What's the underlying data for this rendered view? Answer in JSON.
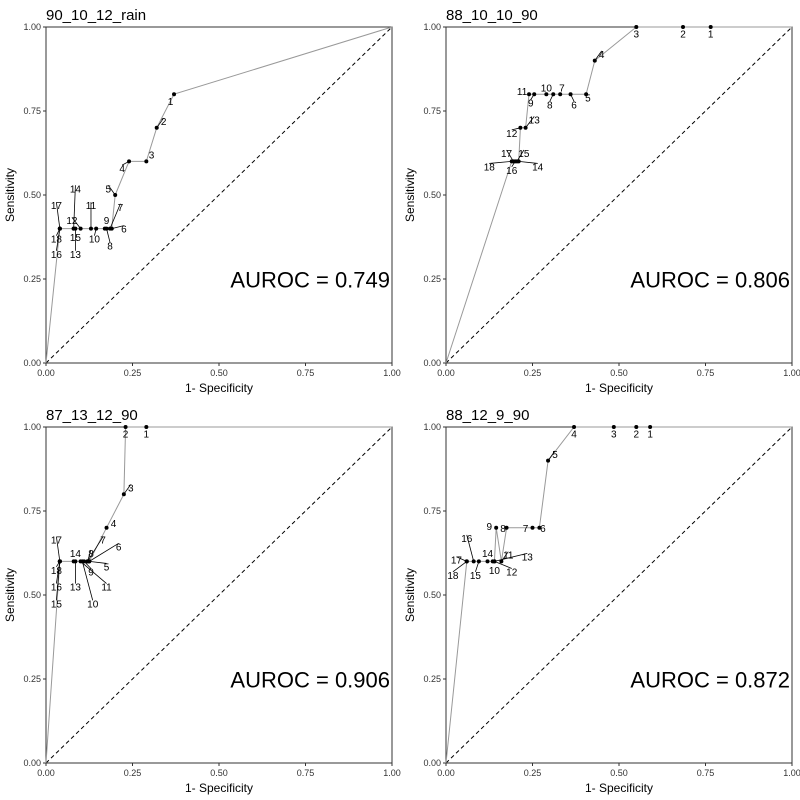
{
  "figure": {
    "background": "#ffffff",
    "line_color": "#999999",
    "point_color": "#000000"
  },
  "chart_data": [
    {
      "type": "line",
      "title": "90_10_12_rain",
      "xlabel": "1- Specificity",
      "ylabel": "Sensitivity",
      "xlim": [
        0,
        1
      ],
      "ylim": [
        0,
        1
      ],
      "ticks": [
        "0.00",
        "0.25",
        "0.50",
        "0.75",
        "1.00"
      ],
      "annotation": "AUROC = 0.749",
      "grid": false,
      "diagonal": "dashed",
      "points": [
        {
          "label": "1",
          "x": 0.37,
          "y": 0.8,
          "lx": 0.36,
          "ly": 0.78
        },
        {
          "label": "2",
          "x": 0.32,
          "y": 0.7,
          "lx": 0.34,
          "ly": 0.72
        },
        {
          "label": "3",
          "x": 0.29,
          "y": 0.6,
          "lx": 0.305,
          "ly": 0.62
        },
        {
          "label": "4",
          "x": 0.24,
          "y": 0.6,
          "lx": 0.22,
          "ly": 0.58
        },
        {
          "label": "5",
          "x": 0.2,
          "y": 0.5,
          "lx": 0.18,
          "ly": 0.52
        },
        {
          "label": "6",
          "x": 0.19,
          "y": 0.4,
          "lx": 0.225,
          "ly": 0.4
        },
        {
          "label": "7",
          "x": 0.185,
          "y": 0.4,
          "lx": 0.215,
          "ly": 0.465
        },
        {
          "label": "8",
          "x": 0.175,
          "y": 0.4,
          "lx": 0.185,
          "ly": 0.35
        },
        {
          "label": "9",
          "x": 0.17,
          "y": 0.4,
          "lx": 0.175,
          "ly": 0.425
        },
        {
          "label": "10",
          "x": 0.145,
          "y": 0.4,
          "lx": 0.14,
          "ly": 0.37
        },
        {
          "label": "11",
          "x": 0.13,
          "y": 0.4,
          "lx": 0.13,
          "ly": 0.47
        },
        {
          "label": "12",
          "x": 0.1,
          "y": 0.4,
          "lx": 0.075,
          "ly": 0.425
        },
        {
          "label": "13",
          "x": 0.085,
          "y": 0.4,
          "lx": 0.085,
          "ly": 0.325
        },
        {
          "label": "14",
          "x": 0.08,
          "y": 0.4,
          "lx": 0.085,
          "ly": 0.52
        },
        {
          "label": "15",
          "x": 0.08,
          "y": 0.4,
          "lx": 0.085,
          "ly": 0.375
        },
        {
          "label": "16",
          "x": 0.04,
          "y": 0.4,
          "lx": 0.03,
          "ly": 0.325
        },
        {
          "label": "17",
          "x": 0.04,
          "y": 0.4,
          "lx": 0.03,
          "ly": 0.47
        },
        {
          "label": "18",
          "x": 0.04,
          "y": 0.4,
          "lx": 0.03,
          "ly": 0.37
        }
      ]
    },
    {
      "type": "line",
      "title": "88_10_10_90",
      "xlabel": "1- Specificity",
      "ylabel": "Sensitivity",
      "xlim": [
        0,
        1
      ],
      "ylim": [
        0,
        1
      ],
      "ticks": [
        "0.00",
        "0.25",
        "0.50",
        "0.75",
        "1.00"
      ],
      "annotation": "AUROC = 0.806",
      "grid": false,
      "diagonal": "dashed",
      "points": [
        {
          "label": "1",
          "x": 0.765,
          "y": 1.0,
          "lx": 0.765,
          "ly": 0.98
        },
        {
          "label": "2",
          "x": 0.685,
          "y": 1.0,
          "lx": 0.685,
          "ly": 0.98
        },
        {
          "label": "3",
          "x": 0.55,
          "y": 1.0,
          "lx": 0.55,
          "ly": 0.98
        },
        {
          "label": "4",
          "x": 0.43,
          "y": 0.9,
          "lx": 0.45,
          "ly": 0.92
        },
        {
          "label": "5",
          "x": 0.405,
          "y": 0.8,
          "lx": 0.41,
          "ly": 0.79
        },
        {
          "label": "6",
          "x": 0.36,
          "y": 0.8,
          "lx": 0.37,
          "ly": 0.77
        },
        {
          "label": "7",
          "x": 0.33,
          "y": 0.8,
          "lx": 0.335,
          "ly": 0.82
        },
        {
          "label": "8",
          "x": 0.31,
          "y": 0.8,
          "lx": 0.3,
          "ly": 0.77
        },
        {
          "label": "9",
          "x": 0.255,
          "y": 0.8,
          "lx": 0.245,
          "ly": 0.775
        },
        {
          "label": "10",
          "x": 0.29,
          "y": 0.8,
          "lx": 0.29,
          "ly": 0.82
        },
        {
          "label": "11",
          "x": 0.24,
          "y": 0.8,
          "lx": 0.22,
          "ly": 0.81
        },
        {
          "label": "12",
          "x": 0.215,
          "y": 0.7,
          "lx": 0.19,
          "ly": 0.685
        },
        {
          "label": "13",
          "x": 0.23,
          "y": 0.7,
          "lx": 0.255,
          "ly": 0.725
        },
        {
          "label": "14",
          "x": 0.21,
          "y": 0.6,
          "lx": 0.265,
          "ly": 0.585
        },
        {
          "label": "15",
          "x": 0.205,
          "y": 0.6,
          "lx": 0.225,
          "ly": 0.625
        },
        {
          "label": "16",
          "x": 0.2,
          "y": 0.6,
          "lx": 0.19,
          "ly": 0.575
        },
        {
          "label": "17",
          "x": 0.195,
          "y": 0.6,
          "lx": 0.175,
          "ly": 0.625
        },
        {
          "label": "18",
          "x": 0.19,
          "y": 0.6,
          "lx": 0.125,
          "ly": 0.585
        }
      ]
    },
    {
      "type": "line",
      "title": "87_13_12_90",
      "xlabel": "1- Specificity",
      "ylabel": "Sensitivity",
      "xlim": [
        0,
        1
      ],
      "ylim": [
        0,
        1
      ],
      "ticks": [
        "0.00",
        "0.25",
        "0.50",
        "0.75",
        "1.00"
      ],
      "annotation": "AUROC = 0.906",
      "grid": false,
      "diagonal": "dashed",
      "points": [
        {
          "label": "1",
          "x": 0.29,
          "y": 1.0,
          "lx": 0.29,
          "ly": 0.98
        },
        {
          "label": "2",
          "x": 0.23,
          "y": 1.0,
          "lx": 0.23,
          "ly": 0.98
        },
        {
          "label": "3",
          "x": 0.225,
          "y": 0.8,
          "lx": 0.245,
          "ly": 0.82
        },
        {
          "label": "4",
          "x": 0.175,
          "y": 0.7,
          "lx": 0.195,
          "ly": 0.715
        },
        {
          "label": "5",
          "x": 0.125,
          "y": 0.6,
          "lx": 0.175,
          "ly": 0.585
        },
        {
          "label": "6",
          "x": 0.125,
          "y": 0.6,
          "lx": 0.21,
          "ly": 0.645
        },
        {
          "label": "7",
          "x": 0.12,
          "y": 0.6,
          "lx": 0.165,
          "ly": 0.665
        },
        {
          "label": "8",
          "x": 0.12,
          "y": 0.6,
          "lx": 0.13,
          "ly": 0.625
        },
        {
          "label": "9",
          "x": 0.11,
          "y": 0.6,
          "lx": 0.13,
          "ly": 0.57
        },
        {
          "label": "10",
          "x": 0.105,
          "y": 0.6,
          "lx": 0.135,
          "ly": 0.475
        },
        {
          "label": "11",
          "x": 0.1,
          "y": 0.6,
          "lx": 0.175,
          "ly": 0.525
        },
        {
          "label": "13",
          "x": 0.085,
          "y": 0.6,
          "lx": 0.085,
          "ly": 0.525
        },
        {
          "label": "14",
          "x": 0.08,
          "y": 0.6,
          "lx": 0.085,
          "ly": 0.625
        },
        {
          "label": "15",
          "x": 0.04,
          "y": 0.6,
          "lx": 0.03,
          "ly": 0.475
        },
        {
          "label": "16",
          "x": 0.04,
          "y": 0.6,
          "lx": 0.03,
          "ly": 0.525
        },
        {
          "label": "17",
          "x": 0.04,
          "y": 0.6,
          "lx": 0.03,
          "ly": 0.665
        },
        {
          "label": "18",
          "x": 0.04,
          "y": 0.6,
          "lx": 0.03,
          "ly": 0.575
        }
      ]
    },
    {
      "type": "line",
      "title": "88_12_9_90",
      "xlabel": "1- Specificity",
      "ylabel": "Sensitivity",
      "xlim": [
        0,
        1
      ],
      "ylim": [
        0,
        1
      ],
      "ticks": [
        "0.00",
        "0.25",
        "0.50",
        "0.75",
        "1.00"
      ],
      "annotation": "AUROC = 0.872",
      "grid": false,
      "diagonal": "dashed",
      "points": [
        {
          "label": "1",
          "x": 0.59,
          "y": 1.0,
          "lx": 0.59,
          "ly": 0.98
        },
        {
          "label": "2",
          "x": 0.55,
          "y": 1.0,
          "lx": 0.55,
          "ly": 0.98
        },
        {
          "label": "3",
          "x": 0.485,
          "y": 1.0,
          "lx": 0.485,
          "ly": 0.98
        },
        {
          "label": "4",
          "x": 0.37,
          "y": 1.0,
          "lx": 0.37,
          "ly": 0.98
        },
        {
          "label": "5",
          "x": 0.295,
          "y": 0.9,
          "lx": 0.315,
          "ly": 0.92
        },
        {
          "label": "6",
          "x": 0.27,
          "y": 0.7,
          "lx": 0.28,
          "ly": 0.7
        },
        {
          "label": "7",
          "x": 0.25,
          "y": 0.7,
          "lx": 0.23,
          "ly": 0.7
        },
        {
          "label": "8",
          "x": 0.175,
          "y": 0.7,
          "lx": 0.165,
          "ly": 0.7
        },
        {
          "label": "9",
          "x": 0.145,
          "y": 0.7,
          "lx": 0.125,
          "ly": 0.705
        },
        {
          "label": "10",
          "x": 0.135,
          "y": 0.6,
          "lx": 0.14,
          "ly": 0.575
        },
        {
          "label": "11",
          "x": 0.16,
          "y": 0.6,
          "lx": 0.18,
          "ly": 0.62
        },
        {
          "label": "12",
          "x": 0.14,
          "y": 0.6,
          "lx": 0.19,
          "ly": 0.57
        },
        {
          "label": "13",
          "x": 0.14,
          "y": 0.6,
          "lx": 0.235,
          "ly": 0.615
        },
        {
          "label": "14",
          "x": 0.12,
          "y": 0.6,
          "lx": 0.12,
          "ly": 0.625
        },
        {
          "label": "15",
          "x": 0.095,
          "y": 0.6,
          "lx": 0.085,
          "ly": 0.56
        },
        {
          "label": "16",
          "x": 0.08,
          "y": 0.6,
          "lx": 0.06,
          "ly": 0.67
        },
        {
          "label": "17",
          "x": 0.06,
          "y": 0.6,
          "lx": 0.03,
          "ly": 0.605
        },
        {
          "label": "18",
          "x": 0.06,
          "y": 0.6,
          "lx": 0.02,
          "ly": 0.56
        }
      ]
    }
  ]
}
